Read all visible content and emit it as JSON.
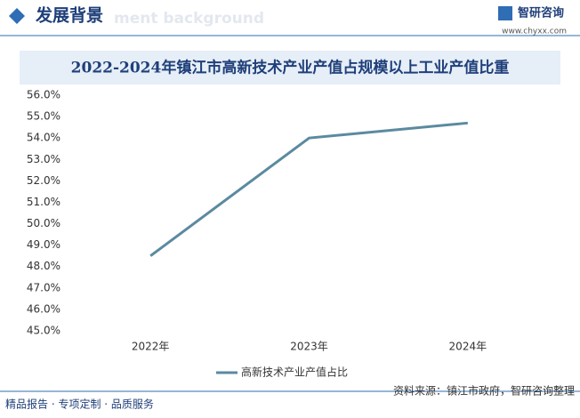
{
  "header": {
    "title": "发展背景",
    "subtitle": "ment background",
    "logo": "智研咨询",
    "url": "www.chyxx.com"
  },
  "footer": {
    "left": "精品报告 · 专项定制 · 品质服务",
    "source": "资料来源：镇江市政府，智研咨询整理"
  },
  "chart_data": {
    "type": "line",
    "title": "2022-2024年镇江市高新技术产业产值占规模以上工业产值比重",
    "categories": [
      "2022年",
      "2023年",
      "2024年"
    ],
    "series": [
      {
        "name": "高新技术产业产值占比",
        "color": "#5b8aa0",
        "values": [
          48.5,
          54.0,
          54.7
        ]
      }
    ],
    "ylim": [
      45,
      56
    ],
    "yticks": [
      {
        "value": 45,
        "label": "45.0%"
      },
      {
        "value": 46,
        "label": "46.0%"
      },
      {
        "value": 47,
        "label": "47.0%"
      },
      {
        "value": 48,
        "label": "48.0%"
      },
      {
        "value": 49,
        "label": "49.0%"
      },
      {
        "value": 50,
        "label": "50.0%"
      },
      {
        "value": 51,
        "label": "51.0%"
      },
      {
        "value": 52,
        "label": "52.0%"
      },
      {
        "value": 53,
        "label": "53.0%"
      },
      {
        "value": 54,
        "label": "54.0%"
      },
      {
        "value": 55,
        "label": "55.0%"
      },
      {
        "value": 56,
        "label": "56.0%"
      }
    ],
    "grid": false,
    "legend": "bottom"
  }
}
